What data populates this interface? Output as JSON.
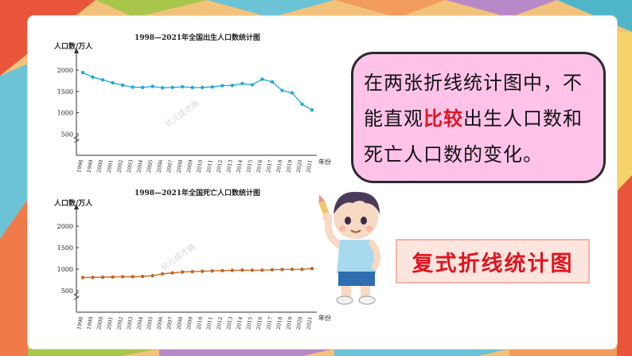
{
  "colors": {
    "birth_line": "#1fa9d8",
    "death_line": "#c8641e",
    "highlight": "#e0141e",
    "bubble_fill": "#ffc3ea"
  },
  "bubble": {
    "line1": "在两张折线统计图中，不",
    "line2_pre": "能直观",
    "line2_highlight": "比较",
    "line2_post": "出生人口数和",
    "line3": "死亡人口数的变化。"
  },
  "badge_label": "复式折线统计图",
  "watermark": "状元成才路",
  "chart_data": [
    {
      "type": "line",
      "title": "1998—2021年全国出生人口数统计图",
      "ylabel": "人口数/万人",
      "xlabel": "年份",
      "ylim": [
        0,
        2000
      ],
      "yticks": [
        500,
        1000,
        1500,
        2000
      ],
      "categories": [
        "1998",
        "1999",
        "2000",
        "2001",
        "2002",
        "2003",
        "2004",
        "2005",
        "2006",
        "2007",
        "2008",
        "2009",
        "2010",
        "2011",
        "2012",
        "2013",
        "2014",
        "2015",
        "2016",
        "2017",
        "2018",
        "2019",
        "2020",
        "2021"
      ],
      "series": [
        {
          "values": [
            1942,
            1834,
            1771,
            1702,
            1647,
            1599,
            1593,
            1617,
            1584,
            1594,
            1608,
            1591,
            1592,
            1604,
            1635,
            1640,
            1683,
            1655,
            1786,
            1723,
            1523,
            1465,
            1202,
            1062
          ]
        }
      ]
    },
    {
      "type": "line",
      "title": "1998—2021年全国死亡人口数统计图",
      "ylabel": "人口数/万人",
      "xlabel": "年份",
      "ylim": [
        0,
        2000
      ],
      "yticks": [
        500,
        1000,
        1500,
        2000
      ],
      "categories": [
        "1998",
        "1999",
        "2000",
        "2001",
        "2002",
        "2003",
        "2004",
        "2005",
        "2006",
        "2007",
        "2008",
        "2009",
        "2010",
        "2011",
        "2012",
        "2013",
        "2014",
        "2015",
        "2016",
        "2017",
        "2018",
        "2019",
        "2020",
        "2021"
      ],
      "series": [
        {
          "values": [
            807,
            809,
            814,
            818,
            826,
            825,
            832,
            849,
            892,
            913,
            935,
            943,
            951,
            960,
            966,
            972,
            977,
            975,
            977,
            986,
            993,
            998,
            997,
            1014
          ]
        }
      ]
    }
  ]
}
